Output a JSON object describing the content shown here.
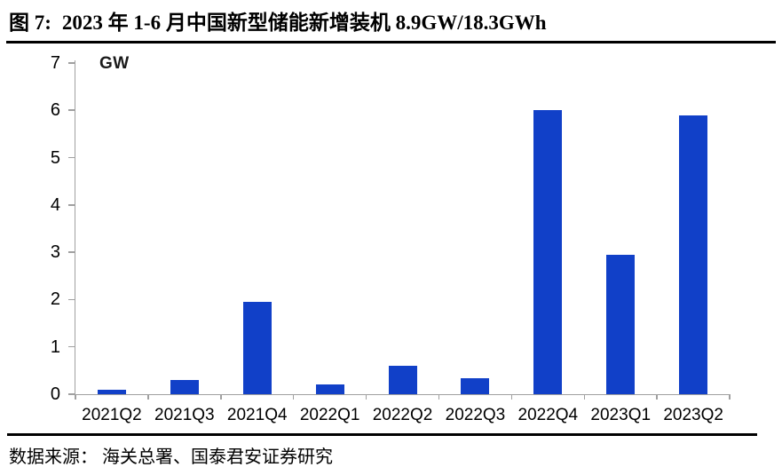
{
  "figure": {
    "label": "图 7:",
    "title": "2023 年 1-6 月中国新型储能新增装机 8.9GW/18.3GWh",
    "source": "数据来源： 海关总署、国泰君安证券研究"
  },
  "chart_data": {
    "type": "bar",
    "title": "2023 年 1-6 月中国新型储能新增装机 8.9GW/18.3GWh",
    "unit_label": "GW",
    "xlabel": "",
    "ylabel": "GW",
    "categories": [
      "2021Q2",
      "2021Q3",
      "2021Q4",
      "2022Q1",
      "2022Q2",
      "2022Q3",
      "2022Q4",
      "2023Q1",
      "2023Q2"
    ],
    "values": [
      0.1,
      0.3,
      1.95,
      0.2,
      0.6,
      0.33,
      6.0,
      2.95,
      5.9
    ],
    "ylim": [
      0,
      7
    ],
    "yticks": [
      0,
      1,
      2,
      3,
      4,
      5,
      6,
      7
    ],
    "grid": false,
    "legend": "none",
    "bar_color": "#1140c8",
    "axis_color": "#a0a0a0",
    "text_color": "#000000"
  }
}
